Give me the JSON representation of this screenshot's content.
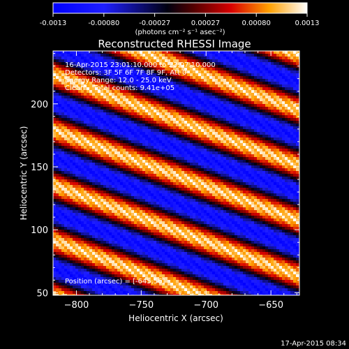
{
  "colorbar": {
    "tick_labels": [
      "-0.0013",
      "-0.00080",
      "-0.00027",
      "0.00027",
      "0.00080",
      "0.0013"
    ],
    "unit_label": "(photons cm⁻² s⁻¹ asec⁻²)"
  },
  "chart_data": {
    "type": "heatmap",
    "title": "Reconstructed RHESSI Image",
    "xlabel": "Heliocentric X (arcsec)",
    "ylabel": "Heliocentric Y (arcsec)",
    "xlim": [
      -818,
      -628
    ],
    "ylim": [
      48,
      242
    ],
    "xticks": [
      -800,
      -750,
      -700,
      -650
    ],
    "yticks": [
      50,
      100,
      150,
      200
    ],
    "color_range": [
      -0.0013,
      0.0013
    ],
    "pattern": {
      "description": "diagonal sinusoidal fringes",
      "fringe_period_arcsec": 41,
      "slope": -0.38
    }
  },
  "annotations": {
    "line1": "16-Apr-2015 23:01:10.000 to 23:07:10.000",
    "line2": "Detectors: 3F 5F 6F 7F 8F 9F, Att 0",
    "line3": "Energy Range: 12.0 - 25.0 keV",
    "line4": "Clean    Total counts: 9.41e+05",
    "position": "Position (arcsec) = [-645,56]"
  },
  "timestamp": "17-Apr-2015 08:34"
}
